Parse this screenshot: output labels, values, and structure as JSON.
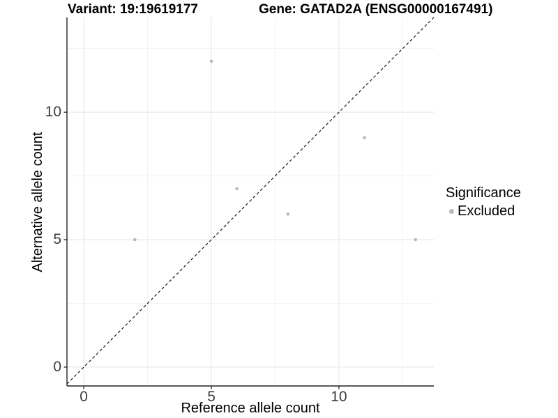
{
  "chart_data": {
    "type": "scatter",
    "title_left": "Variant: 19:19619177",
    "title_right": "Gene: GATAD2A (ENSG00000167491)",
    "xlabel": "Reference allele count",
    "ylabel": "Alternative allele count",
    "xlim": [
      -0.66,
      13.72
    ],
    "ylim": [
      -0.74,
      13.72
    ],
    "x_major_ticks": [
      0,
      5,
      10
    ],
    "y_major_ticks": [
      0,
      5,
      10
    ],
    "x_minor_ticks": [
      2.5,
      7.5,
      12.5
    ],
    "y_minor_ticks": [
      2.5,
      7.5,
      12.5
    ],
    "grid": true,
    "points": [
      {
        "x": 2,
        "y": 5,
        "significance": "Excluded"
      },
      {
        "x": 5,
        "y": 12,
        "significance": "Excluded"
      },
      {
        "x": 6,
        "y": 7,
        "significance": "Excluded"
      },
      {
        "x": 8,
        "y": 6,
        "significance": "Excluded"
      },
      {
        "x": 11,
        "y": 9,
        "significance": "Excluded"
      },
      {
        "x": 13,
        "y": 5,
        "significance": "Excluded"
      }
    ],
    "point_color": "#b8b8b8",
    "abline": {
      "slope": 1,
      "intercept": 0,
      "style": "dashed",
      "color": "#1a1a1a"
    },
    "colors": {
      "grid_major": "#e5e5e5",
      "grid_minor": "#f0f0f0",
      "axis": "#222222",
      "tick_label": "#3c3c3c"
    },
    "legend": {
      "title": "Significance",
      "position": "right",
      "items": [
        {
          "label": "Excluded",
          "color": "#b8b8b8"
        }
      ]
    }
  }
}
